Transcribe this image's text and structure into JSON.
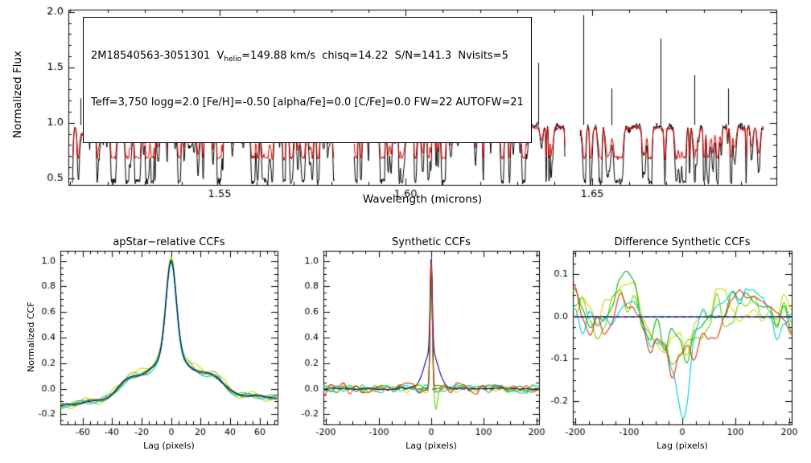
{
  "figure": {
    "bg": "#ffffff",
    "annotation": {
      "line1_prefix": "2M18540563-3051301  V",
      "line1_sub": "helio",
      "line1_suffix": "=149.88 km/s  chisq=14.22  S/N=141.3  Nvisits=5",
      "line2": "Teff=3,750 logg=2.0 [Fe/H]=-0.50 [alpha/Fe]=0.0 [C/Fe]=0.0 FW=22 AUTOFW=21"
    }
  },
  "chart_data": [
    {
      "id": "spectrum",
      "type": "line",
      "title": "",
      "xlabel": "Wavelength (microns)",
      "ylabel": "Normalized Flux",
      "x_range": [
        1.5095,
        1.6995
      ],
      "y_range": [
        0.44,
        2.02
      ],
      "x_ticks": [
        1.55,
        1.6,
        1.65
      ],
      "x_tick_labels": [
        "1.55",
        "1.60",
        "1.65"
      ],
      "x_minor": 0.01,
      "y_ticks": [
        0.5,
        1.0,
        1.5,
        2.0
      ],
      "y_tick_labels": [
        "0.5",
        "1.0",
        "1.5",
        "2.0"
      ],
      "y_minor": 0.1,
      "segments": [
        [
          1.5105,
          1.5808
        ],
        [
          1.5862,
          1.6428
        ],
        [
          1.6468,
          1.696
        ]
      ],
      "n_lines": 300,
      "seed": 20240817,
      "series": [
        {
          "name": "observed-spectrum",
          "color": "#000000",
          "continuum": 0.97,
          "noise": 0.024,
          "depth_scale": 1.0,
          "depth_cap": 0.5
        },
        {
          "name": "best-fit-synthetic-spectrum",
          "color": "#dd0000",
          "continuum": 0.955,
          "noise": 0.014,
          "depth_scale": 0.55,
          "depth_cap": 0.27
        }
      ],
      "emission_spikes": [
        {
          "w": 1.5128,
          "h": 1.22
        },
        {
          "w": 1.5185,
          "h": 1.4
        },
        {
          "w": 1.5232,
          "h": 1.18
        },
        {
          "w": 1.5305,
          "h": 1.52
        },
        {
          "w": 1.5435,
          "h": 1.26
        },
        {
          "w": 1.5531,
          "h": 1.2
        },
        {
          "w": 1.5558,
          "h": 1.33
        },
        {
          "w": 1.5652,
          "h": 1.73
        },
        {
          "w": 1.568,
          "h": 1.36
        },
        {
          "w": 1.577,
          "h": 1.22
        },
        {
          "w": 1.5898,
          "h": 1.63
        },
        {
          "w": 1.5953,
          "h": 1.31
        },
        {
          "w": 1.6042,
          "h": 1.27
        },
        {
          "w": 1.6122,
          "h": 1.41
        },
        {
          "w": 1.6188,
          "h": 1.22
        },
        {
          "w": 1.6238,
          "h": 1.46
        },
        {
          "w": 1.6355,
          "h": 1.54
        },
        {
          "w": 1.6477,
          "h": 1.97
        },
        {
          "w": 1.6553,
          "h": 1.31
        },
        {
          "w": 1.6685,
          "h": 1.76
        },
        {
          "w": 1.6775,
          "h": 1.43
        },
        {
          "w": 1.6865,
          "h": 1.31
        }
      ]
    },
    {
      "id": "apstar_ccf",
      "type": "line",
      "title": "apStar−relative CCFs",
      "xlabel": "Lag (pixels)",
      "ylabel": "Normalized CCF",
      "x_range": [
        -75,
        72
      ],
      "y_range": [
        -0.28,
        1.08
      ],
      "x_ticks": [
        -60,
        -40,
        -20,
        0,
        20,
        40,
        60
      ],
      "x_tick_labels": [
        "-60",
        "-40",
        "-20",
        "0",
        "20",
        "40",
        "60"
      ],
      "x_minor": 5,
      "y_ticks": [
        -0.2,
        0.0,
        0.2,
        0.4,
        0.6,
        0.8,
        1.0
      ],
      "y_tick_labels": [
        "-0.2",
        "0.0",
        "0.2",
        "0.4",
        "0.6",
        "0.8",
        "1.0"
      ],
      "y_minor": 0.05,
      "peak": {
        "center": 0,
        "height": 1.0,
        "core_sigma": 3.4
      },
      "series": [
        {
          "name": "visit-ccf-1",
          "color": "#e03000",
          "ped": 1.0,
          "wig": 0.012,
          "phase": 0.5
        },
        {
          "name": "visit-ccf-2",
          "color": "#ddd000",
          "ped": 1.1,
          "wig": 0.034,
          "phase": 2.1
        },
        {
          "name": "visit-ccf-3",
          "color": "#63d600",
          "ped": 1.05,
          "wig": 0.02,
          "phase": 4.0
        },
        {
          "name": "visit-ccf-4",
          "color": "#00b400",
          "ped": 1.0,
          "wig": 0.015,
          "phase": 1.2
        },
        {
          "name": "visit-ccf-5",
          "color": "#00c6e0",
          "ped": 0.94,
          "wig": 0.016,
          "phase": 3.0
        },
        {
          "name": "combined-ccf",
          "color": "#000088",
          "ped": 1.0,
          "wig": 0.002,
          "phase": 0.0
        }
      ]
    },
    {
      "id": "synthetic_ccf",
      "type": "line",
      "title": "Synthetic CCFs",
      "xlabel": "Lag (pixels)",
      "ylabel": "",
      "x_range": [
        -205,
        205
      ],
      "y_range": [
        -0.28,
        1.08
      ],
      "x_ticks": [
        -200,
        -100,
        0,
        100,
        200
      ],
      "x_tick_labels": [
        "-200",
        "-100",
        "0",
        "100",
        "200"
      ],
      "x_minor": 25,
      "y_ticks": [
        -0.2,
        0.0,
        0.2,
        0.4,
        0.6,
        0.8,
        1.0
      ],
      "y_tick_labels": [
        "-0.2",
        "0.0",
        "0.2",
        "0.4",
        "0.6",
        "0.8",
        "1.0"
      ],
      "y_minor": 0.05,
      "zero_line": "dashed",
      "seed": 7701,
      "peak": {
        "center": 0,
        "sigma": 2.1
      },
      "series": [
        {
          "name": "visit-ccf-2",
          "color": "#ddd000",
          "peak": 0.97,
          "noise": 0.035
        },
        {
          "name": "visit-ccf-3",
          "color": "#63d600",
          "peak": 0.99,
          "noise": 0.03,
          "dip": [
            9,
            2.5,
            -0.14
          ]
        },
        {
          "name": "visit-ccf-4",
          "color": "#00b400",
          "peak": 0.98,
          "noise": 0.03
        },
        {
          "name": "visit-ccf-5",
          "color": "#00c6e0",
          "peak": 0.96,
          "noise": 0.035
        },
        {
          "name": "combined-ccf",
          "color": "#000088",
          "peak": 0.72,
          "noise": 0.007,
          "wing": 0.3
        },
        {
          "name": "visit-ccf-1",
          "color": "#e03000",
          "peak": 1.0,
          "noise": 0.048
        }
      ]
    },
    {
      "id": "difference_ccf",
      "type": "line",
      "title": "Difference Synthetic CCFs",
      "xlabel": "Lag (pixels)",
      "ylabel": "",
      "x_range": [
        -205,
        205
      ],
      "y_range": [
        -0.255,
        0.155
      ],
      "x_ticks": [
        -200,
        -100,
        0,
        100,
        200
      ],
      "x_tick_labels": [
        "-200",
        "-100",
        "0",
        "100",
        "200"
      ],
      "x_minor": 25,
      "y_ticks": [
        -0.2,
        -0.1,
        0.0,
        0.1
      ],
      "y_tick_labels": [
        "-0.2",
        "-0.1",
        "0.0",
        "0.1"
      ],
      "y_minor": 0.025,
      "zero_line": "dashed",
      "seed": 9902,
      "series": [
        {
          "name": "visit-diff-2",
          "color": "#ddd000",
          "noise": 0.04,
          "cscale": 1.0
        },
        {
          "name": "visit-diff-3",
          "color": "#63d600",
          "noise": 0.04,
          "cscale": 1.0
        },
        {
          "name": "visit-diff-4",
          "color": "#00b400",
          "noise": 0.038,
          "cscale": 0.9
        },
        {
          "name": "visit-diff-5",
          "color": "#00c6e0",
          "noise": 0.045,
          "cscale": 1.0,
          "dip": [
            2,
            9,
            -0.11
          ]
        },
        {
          "name": "visit-diff-1",
          "color": "#e03000",
          "noise": 0.05,
          "cscale": 1.2
        },
        {
          "name": "combined-diff",
          "color": "#000088",
          "flat": true
        }
      ]
    }
  ]
}
